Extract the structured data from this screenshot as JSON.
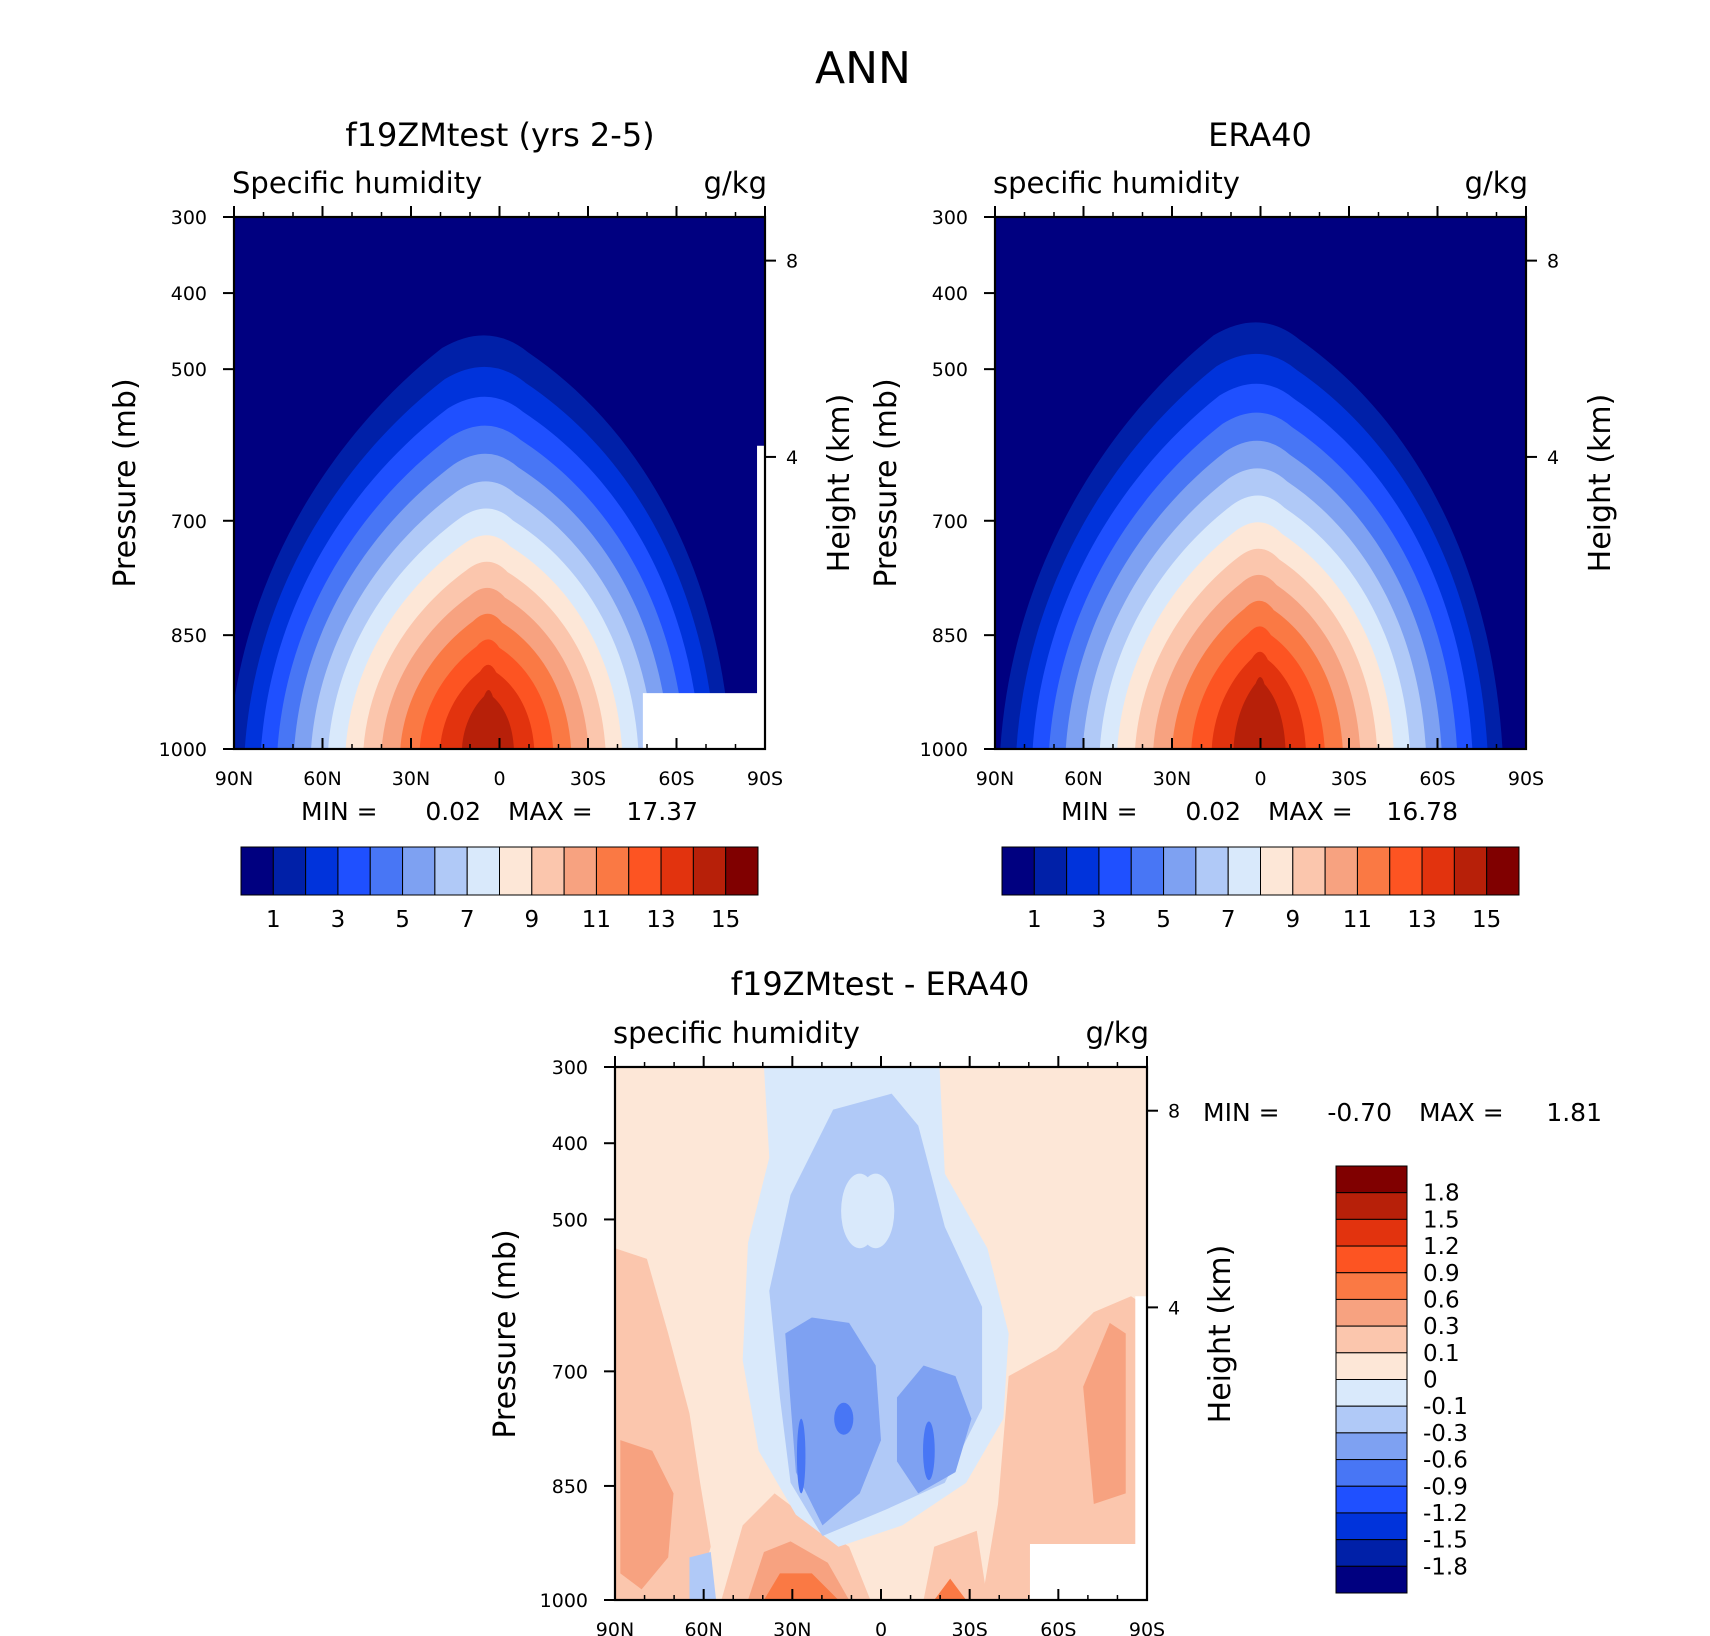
{
  "figure_title": "ANN",
  "colors": {
    "abs": [
      "#000080",
      "#0020a8",
      "#0033db",
      "#1f50ff",
      "#4876f5",
      "#7ea1f2",
      "#b0c9f7",
      "#d9e9fb",
      "#fde7d7",
      "#fbc6ad",
      "#f7a280",
      "#fa7944",
      "#fd5422",
      "#e2330e",
      "#b72009",
      "#800000"
    ],
    "diff": [
      "#000080",
      "#0020a8",
      "#0033db",
      "#1f50ff",
      "#4876f5",
      "#7ea1f2",
      "#b0c9f7",
      "#d9e9fb",
      "#fde7d7",
      "#fbc6ad",
      "#f7a280",
      "#fa7944",
      "#fd5422",
      "#e2330e",
      "#b72009",
      "#800000"
    ]
  },
  "chart_data": [
    {
      "type": "heatmap",
      "title": "f19ZMtest (yrs 2-5)",
      "left_string": "Specific humidity",
      "right_string": "g/kg",
      "ylabel": "Pressure (mb)",
      "ylabel_right": "Height (km)",
      "x_ticks": [
        "90N",
        "60N",
        "30N",
        "0",
        "30S",
        "60S",
        "90S"
      ],
      "y_ticks": [
        "300",
        "400",
        "500",
        "700",
        "850",
        "1000"
      ],
      "y_right_ticks": [
        "8",
        "4"
      ],
      "min_label": "MIN =",
      "min_value": "0.02",
      "max_label": "MAX =",
      "max_value": "17.37",
      "ylim": [
        1000,
        300
      ],
      "levels_labels": [
        "1",
        "3",
        "5",
        "7",
        "9",
        "11",
        "13",
        "15"
      ],
      "levels": [
        1,
        2,
        3,
        4,
        5,
        6,
        7,
        8,
        9,
        10,
        11,
        12,
        13,
        14,
        15
      ]
    },
    {
      "type": "heatmap",
      "title": "ERA40",
      "left_string": "specific humidity",
      "right_string": "g/kg",
      "ylabel": "Pressure (mb)",
      "ylabel_right": "Height (km)",
      "x_ticks": [
        "90N",
        "60N",
        "30N",
        "0",
        "30S",
        "60S",
        "90S"
      ],
      "y_ticks": [
        "300",
        "400",
        "500",
        "700",
        "850",
        "1000"
      ],
      "y_right_ticks": [
        "8",
        "4"
      ],
      "min_label": "MIN =",
      "min_value": "0.02",
      "max_label": "MAX =",
      "max_value": "16.78",
      "ylim": [
        1000,
        300
      ],
      "levels_labels": [
        "1",
        "3",
        "5",
        "7",
        "9",
        "11",
        "13",
        "15"
      ],
      "levels": [
        1,
        2,
        3,
        4,
        5,
        6,
        7,
        8,
        9,
        10,
        11,
        12,
        13,
        14,
        15
      ]
    },
    {
      "type": "heatmap",
      "title": "f19ZMtest - ERA40",
      "left_string": "specific humidity",
      "right_string": "g/kg",
      "ylabel": "Pressure (mb)",
      "ylabel_right": "Height (km)",
      "x_ticks": [
        "90N",
        "60N",
        "30N",
        "0",
        "30S",
        "60S",
        "90S"
      ],
      "y_ticks": [
        "300",
        "400",
        "500",
        "700",
        "850",
        "1000"
      ],
      "y_right_ticks": [
        "8",
        "4"
      ],
      "min_label": "MIN =",
      "min_value": "-0.70",
      "max_label": "MAX =",
      "max_value": "1.81",
      "ylim": [
        1000,
        300
      ],
      "levels_labels": [
        "1.8",
        "1.5",
        "1.2",
        "0.9",
        "0.6",
        "0.3",
        "0.1",
        "0",
        "-0.1",
        "-0.3",
        "-0.6",
        "-0.9",
        "-1.2",
        "-1.5",
        "-1.8"
      ],
      "levels": [
        -1.8,
        -1.5,
        -1.2,
        -0.9,
        -0.6,
        -0.3,
        -0.1,
        0,
        0.1,
        0.3,
        0.6,
        0.9,
        1.2,
        1.5,
        1.8
      ]
    }
  ]
}
